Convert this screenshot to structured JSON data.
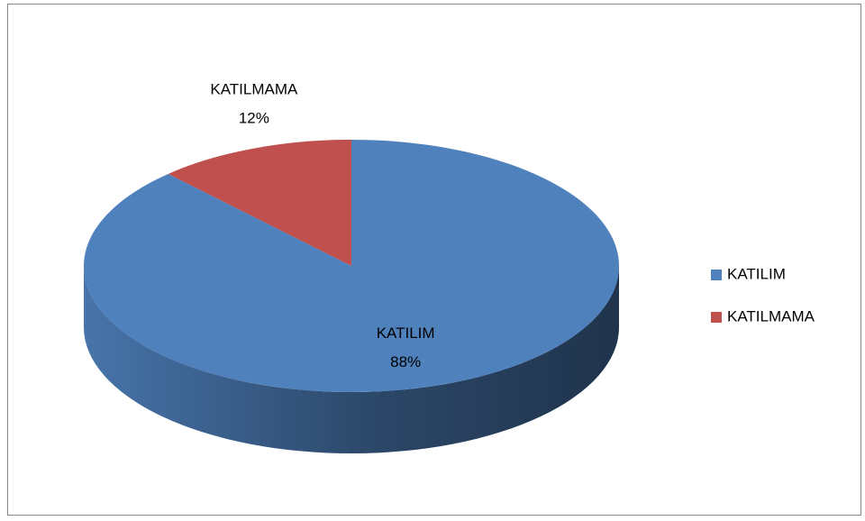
{
  "chart_data": {
    "type": "pie",
    "categories": [
      "KATILIM",
      "KATILMAMA"
    ],
    "values": [
      88,
      12
    ],
    "value_labels": [
      "88%",
      "12%"
    ],
    "colors": [
      "#4f81bd",
      "#c0504d"
    ],
    "legend": "right"
  }
}
